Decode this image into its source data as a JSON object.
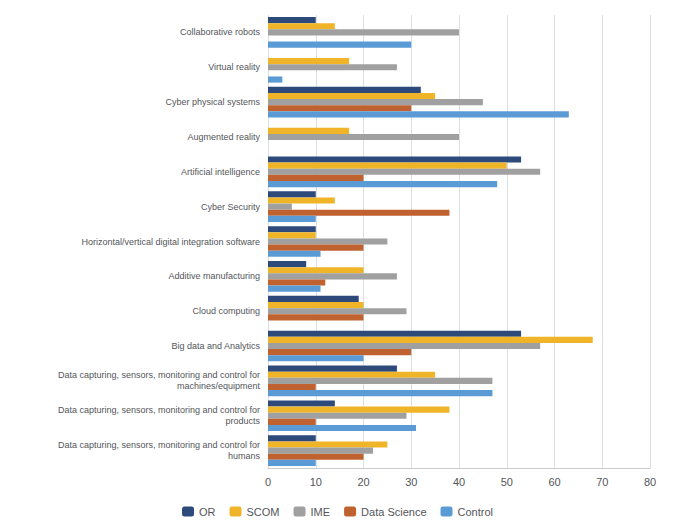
{
  "chart_data": {
    "type": "bar",
    "orientation": "horizontal",
    "categories": [
      "Collaborative robots",
      "Virtual reality",
      "Cyber physical systems",
      "Augmented reality",
      "Artificial intelligence",
      "Cyber Security",
      "Horizontal/vertical digital integration software",
      "Additive manufacturing",
      "Cloud computing",
      "Big data and Analytics",
      "Data capturing, sensors, monitoring and control for\nmachines/equipment",
      "Data capturing, sensors, monitoring and control for\nproducts",
      "Data capturing, sensors, monitoring and control for\nhumans"
    ],
    "series": [
      {
        "name": "OR",
        "color": "#2e4a7a",
        "values": [
          10,
          0,
          32,
          0,
          53,
          10,
          10,
          8,
          19,
          53,
          27,
          14,
          10
        ]
      },
      {
        "name": "SCOM",
        "color": "#f0b429",
        "values": [
          14,
          17,
          35,
          17,
          50,
          14,
          10,
          20,
          20,
          68,
          35,
          38,
          25
        ]
      },
      {
        "name": "IME",
        "color": "#a0a0a0",
        "values": [
          40,
          27,
          45,
          40,
          57,
          5,
          25,
          27,
          29,
          57,
          47,
          29,
          22
        ]
      },
      {
        "name": "Data Science",
        "color": "#c0622f",
        "values": [
          0,
          0,
          30,
          0,
          20,
          38,
          20,
          12,
          20,
          30,
          10,
          10,
          20
        ]
      },
      {
        "name": "Control",
        "color": "#5b9bd5",
        "values": [
          30,
          3,
          63,
          0,
          48,
          10,
          11,
          11,
          0,
          20,
          47,
          31,
          10
        ]
      }
    ],
    "xlim": [
      0,
      80
    ],
    "xticks": [
      0,
      10,
      20,
      30,
      40,
      50,
      60,
      70,
      80
    ],
    "grid": true,
    "legend": "bottom"
  }
}
